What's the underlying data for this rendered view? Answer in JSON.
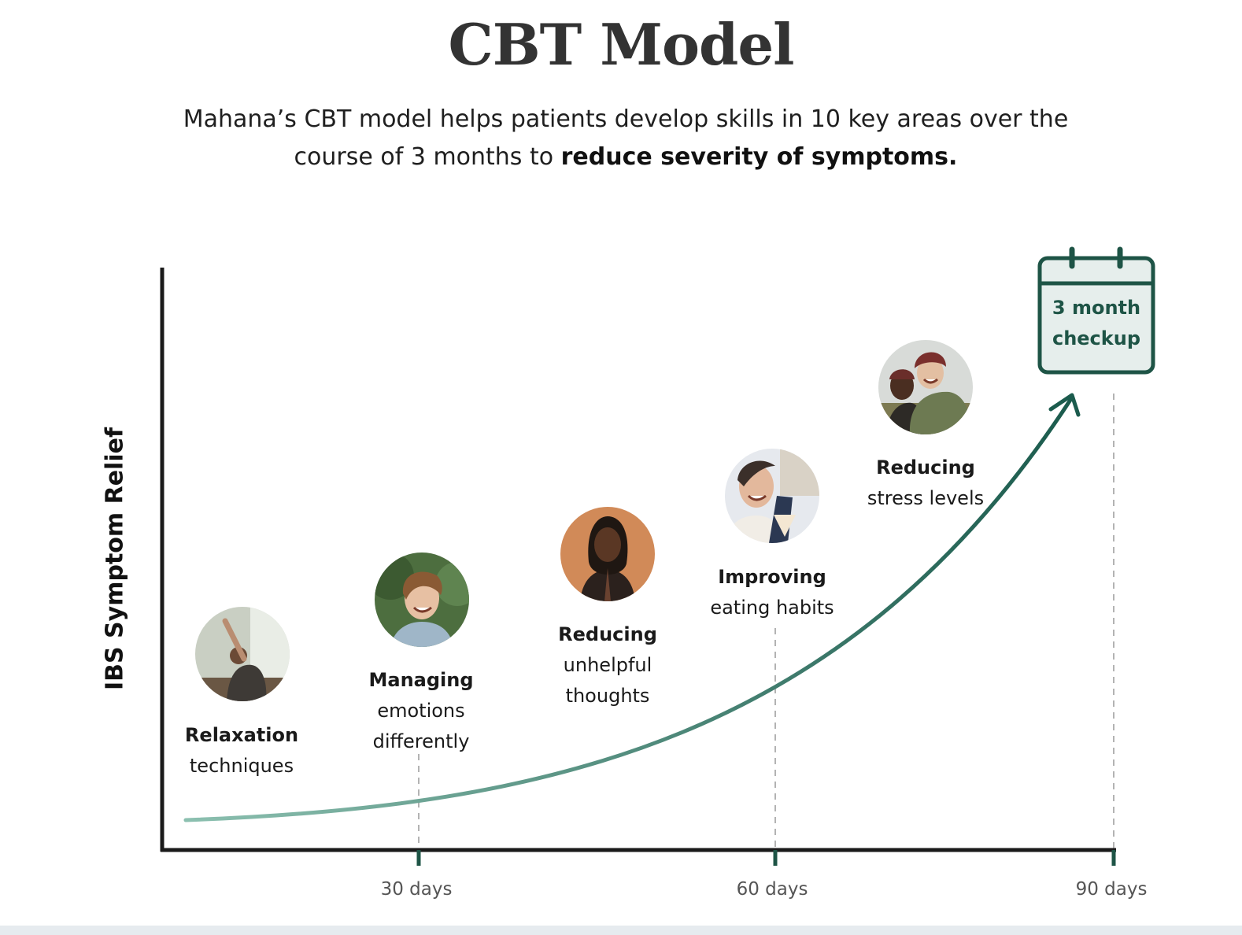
{
  "title": "CBT Model",
  "subtitle": {
    "text": "Mahana’s CBT model helps patients develop skills in 10 key areas over the course of 3 months to ",
    "bold": "reduce severity of symptoms."
  },
  "y_axis_label": "IBS Symptom Relief",
  "x_ticks": [
    "30 days",
    "60 days",
    "90 days"
  ],
  "checkup": {
    "line1": "3 month",
    "line2": "checkup"
  },
  "milestones": [
    {
      "title": "Relaxation",
      "line1": "techniques",
      "line2": "",
      "photo": "person-stretching-photo"
    },
    {
      "title": "Managing",
      "line1": "emotions",
      "line2": "differently",
      "photo": "person-laughing-photo"
    },
    {
      "title": "Reducing",
      "line1": "unhelpful",
      "line2": "thoughts",
      "photo": "person-meditating-photo"
    },
    {
      "title": "Improving",
      "line1": "eating habits",
      "line2": "",
      "photo": "person-eating-photo"
    },
    {
      "title": "Reducing",
      "line1": "stress levels",
      "line2": "",
      "photo": "couple-hugging-photo"
    }
  ],
  "colors": {
    "curve_start": "#8cc0b0",
    "curve_end": "#1b5b4d",
    "axis": "#1a1a1a",
    "accent": "#1e5446",
    "dashes": "#b3b3b3"
  }
}
